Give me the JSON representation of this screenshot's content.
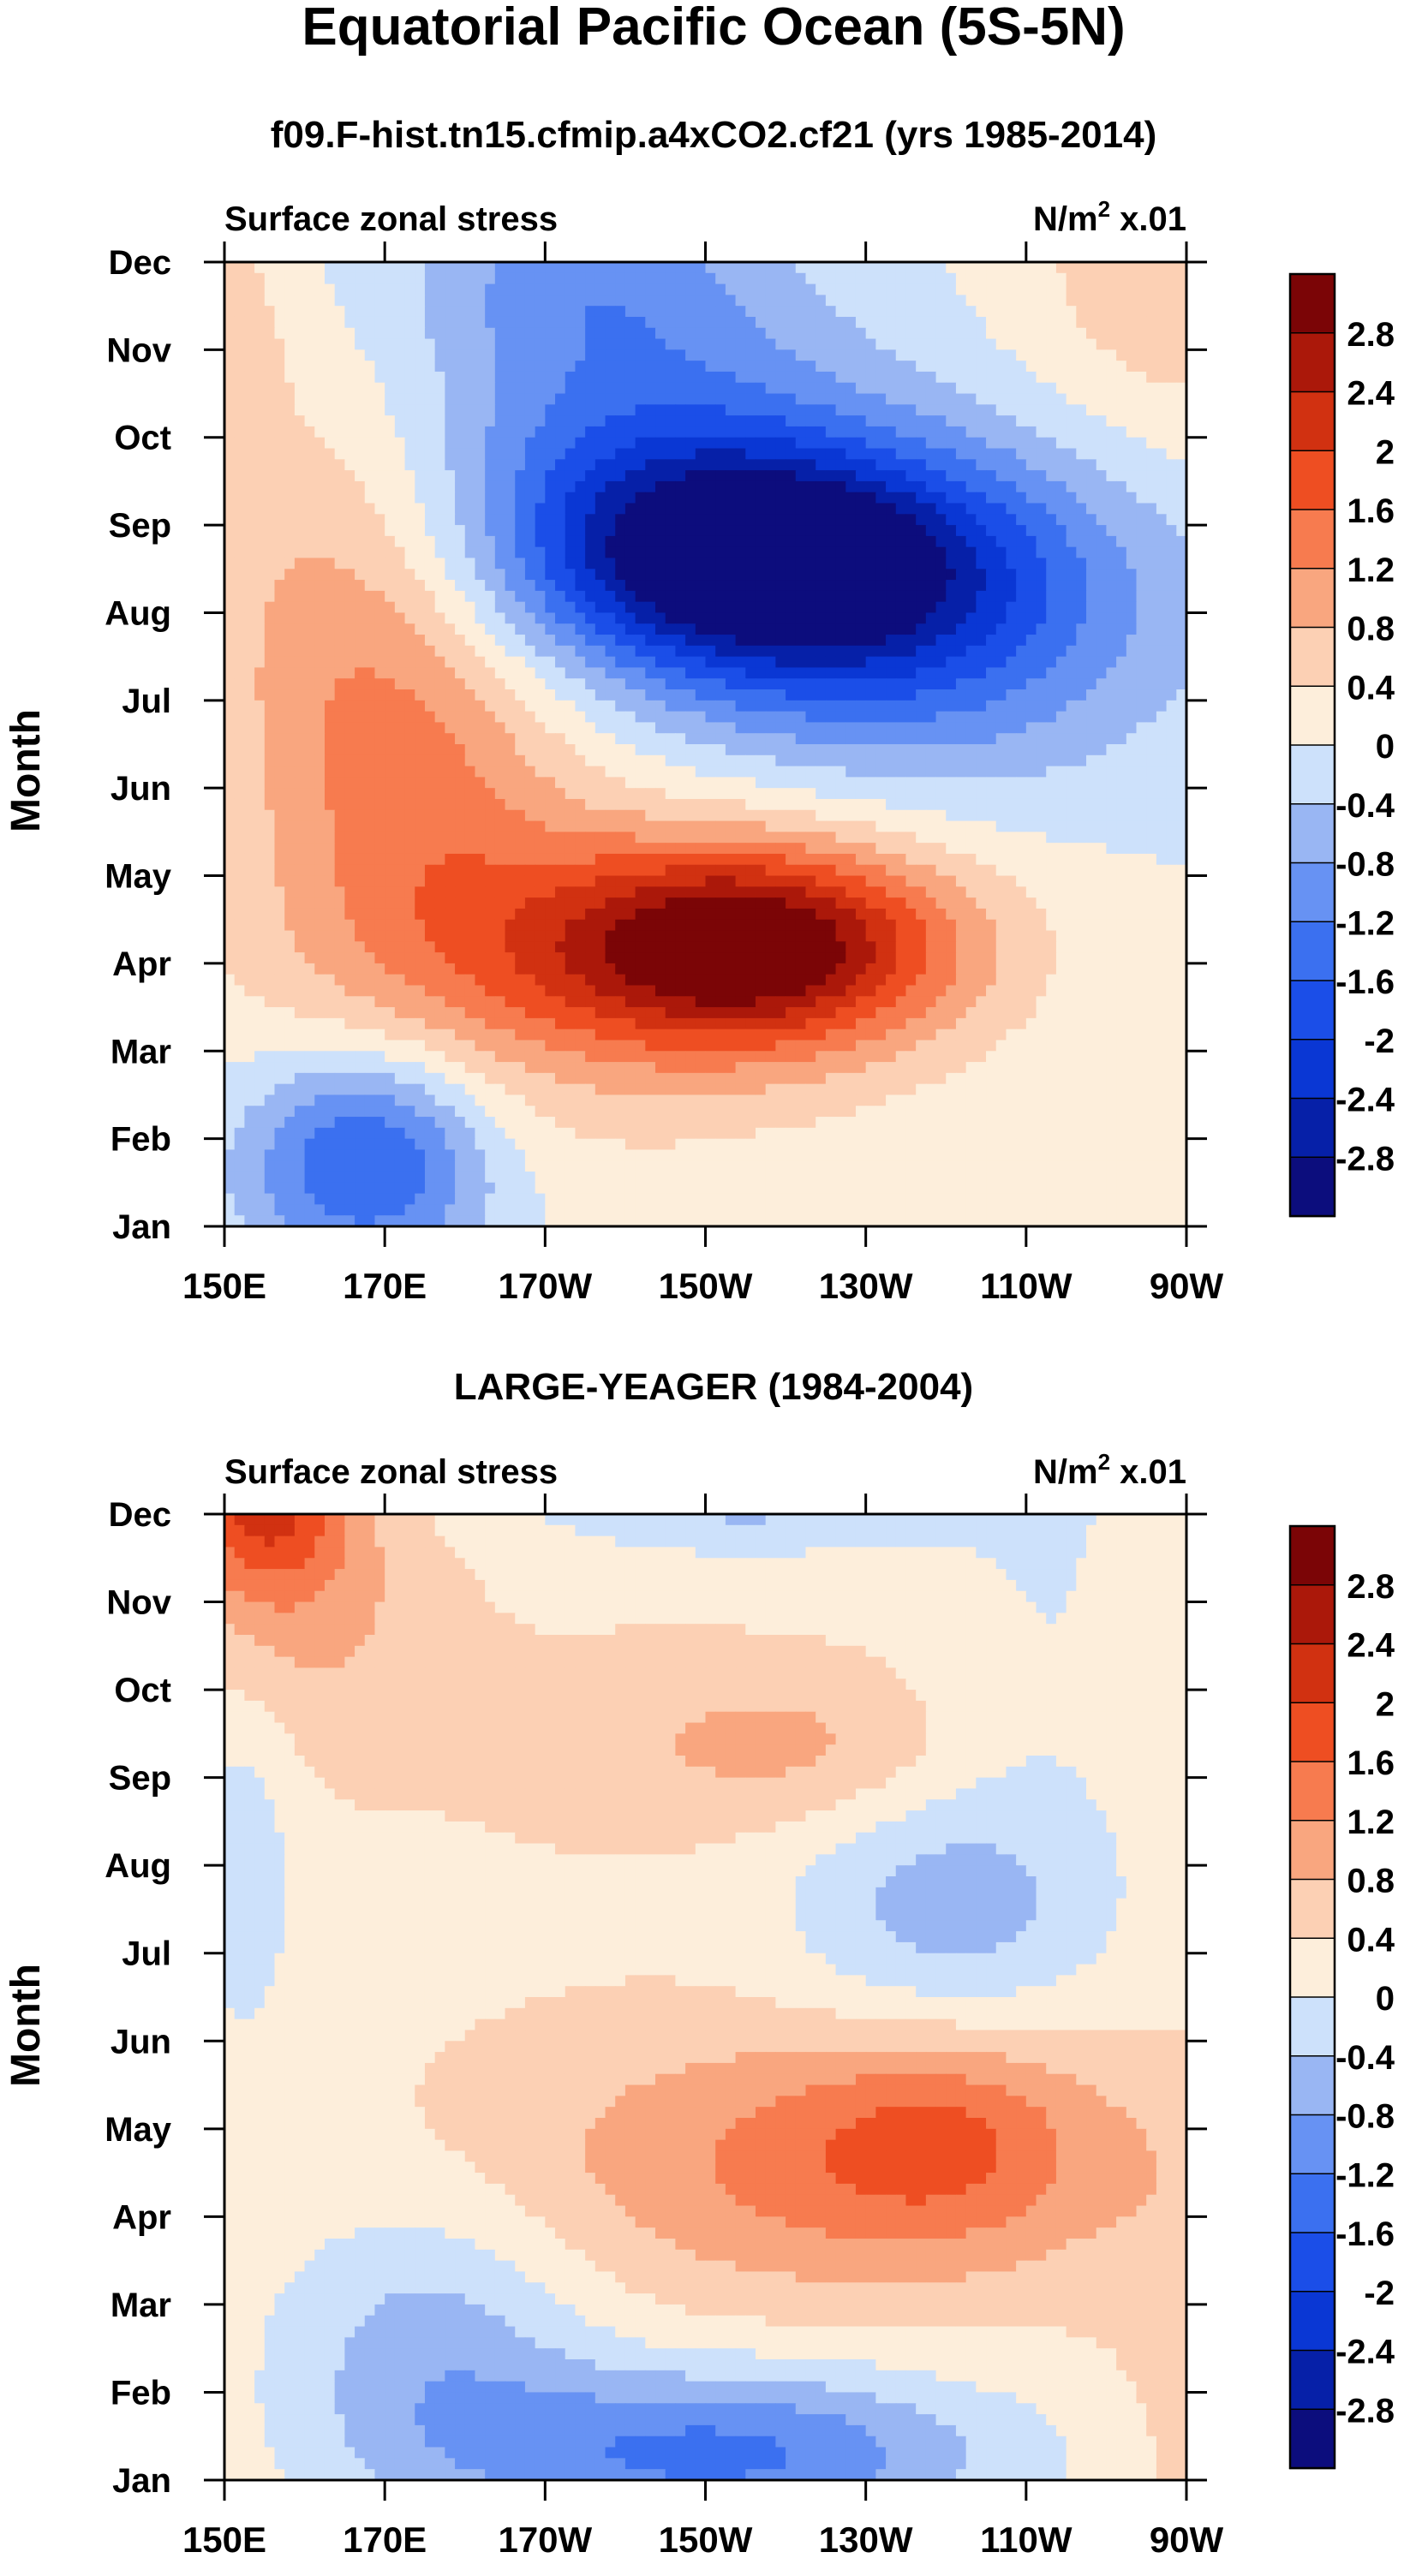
{
  "header": {
    "title": "Equatorial Pacific Ocean (5S-5N)"
  },
  "chart_data": [
    {
      "type": "heatmap",
      "title": "f09.F-hist.tn15.cfmip.a4xCO2.cf21 (yrs 1985-2014)",
      "left_label": "Surface zonal stress",
      "units_main": "N/m",
      "units_sup": "2",
      "units_tail": " x.01",
      "ylabel": "Month",
      "x_ticks": [
        "150E",
        "170E",
        "170W",
        "150W",
        "130W",
        "110W",
        "90W"
      ],
      "y_ticks": [
        "Jan",
        "Feb",
        "Mar",
        "Apr",
        "May",
        "Jun",
        "Jul",
        "Aug",
        "Sep",
        "Oct",
        "Nov",
        "Dec"
      ],
      "x_range_deg_east": [
        150,
        270
      ],
      "colorbar_levels": [
        "2.8",
        "2.4",
        "2",
        "1.6",
        "1.2",
        "0.8",
        "0.4",
        "0",
        "-0.4",
        "-0.8",
        "-1.2",
        "-1.6",
        "-2",
        "-2.4",
        "-2.8"
      ],
      "features": [
        {
          "lon": 215,
          "month": 3.2,
          "value": 3.0,
          "sx": 18,
          "sy": 0.8
        },
        {
          "lon": 195,
          "month": 2.8,
          "value": 0.8,
          "sx": 30,
          "sy": 1.5
        },
        {
          "lon": 175,
          "month": 5.0,
          "value": 1.0,
          "sx": 14,
          "sy": 2.0
        },
        {
          "lon": 162,
          "month": 7.3,
          "value": 0.7,
          "sx": 13,
          "sy": 2.0
        },
        {
          "lon": 215,
          "month": 7.6,
          "value": -3.0,
          "sx": 20,
          "sy": 0.9
        },
        {
          "lon": 235,
          "month": 7.0,
          "value": -1.6,
          "sx": 22,
          "sy": 1.3
        },
        {
          "lon": 200,
          "month": 9.2,
          "value": -1.1,
          "sx": 20,
          "sy": 1.2
        },
        {
          "lon": 168,
          "month": 0.8,
          "value": -1.9,
          "sx": 11,
          "sy": 0.9
        },
        {
          "lon": 195,
          "month": 10.9,
          "value": -0.7,
          "sx": 16,
          "sy": 0.7
        },
        {
          "lon": 270,
          "month": 11.0,
          "value": 0.8,
          "sx": 14,
          "sy": 1.4
        },
        {
          "lon": 152,
          "month": 10.0,
          "value": 0.5,
          "sx": 4,
          "sy": 1.2
        }
      ]
    },
    {
      "type": "heatmap",
      "title": "LARGE-YEAGER (1984-2004)",
      "left_label": "Surface zonal stress",
      "units_main": "N/m",
      "units_sup": "2",
      "units_tail": " x.01",
      "ylabel": "Month",
      "x_ticks": [
        "150E",
        "170E",
        "170W",
        "150W",
        "130W",
        "110W",
        "90W"
      ],
      "y_ticks": [
        "Jan",
        "Feb",
        "Mar",
        "Apr",
        "May",
        "Jun",
        "Jul",
        "Aug",
        "Sep",
        "Oct",
        "Nov",
        "Dec"
      ],
      "x_range_deg_east": [
        150,
        270
      ],
      "colorbar_levels": [
        "2.8",
        "2.4",
        "2",
        "1.6",
        "1.2",
        "0.8",
        "0.4",
        "0",
        "-0.4",
        "-0.8",
        "-1.2",
        "-1.6",
        "-2",
        "-2.4",
        "-2.8"
      ],
      "features": [
        {
          "lon": 0,
          "month": 0,
          "value": 0.3,
          "sx": 0,
          "sy": 0
        },
        {
          "lon": 155,
          "month": 11.3,
          "value": 1.7,
          "sx": 7,
          "sy": 0.8
        },
        {
          "lon": 160,
          "month": 10.0,
          "value": 0.6,
          "sx": 12,
          "sy": 1.2
        },
        {
          "lon": 225,
          "month": 3.6,
          "value": 1.0,
          "sx": 28,
          "sy": 1.1
        },
        {
          "lon": 240,
          "month": 3.9,
          "value": 0.7,
          "sx": 12,
          "sy": 0.8
        },
        {
          "lon": 205,
          "month": 8.4,
          "value": 0.4,
          "sx": 18,
          "sy": 0.8
        },
        {
          "lon": 225,
          "month": 8.3,
          "value": 0.4,
          "sx": 12,
          "sy": 0.6
        },
        {
          "lon": 212,
          "month": 0.3,
          "value": -1.6,
          "sx": 24,
          "sy": 0.7
        },
        {
          "lon": 176,
          "month": 1.5,
          "value": -0.9,
          "sx": 14,
          "sy": 1.2
        },
        {
          "lon": 240,
          "month": 6.5,
          "value": -0.9,
          "sx": 14,
          "sy": 1.0
        },
        {
          "lon": 215,
          "month": 11.5,
          "value": -1.1,
          "sx": 20,
          "sy": 0.6
        },
        {
          "lon": 152,
          "month": 7.0,
          "value": -0.6,
          "sx": 5,
          "sy": 1.5
        },
        {
          "lon": 253,
          "month": 10.0,
          "value": -0.3,
          "sx": 10,
          "sy": 2.0
        },
        {
          "lon": 270,
          "month": 1.0,
          "value": 0.3,
          "sx": 6,
          "sy": 2.0
        }
      ]
    }
  ],
  "colors": {
    "palette": [
      "#0c0d7d",
      "#0620a8",
      "#0a37d4",
      "#1b4ee8",
      "#3b70f0",
      "#6792f3",
      "#99b6f3",
      "#cde1fb",
      "#fdeedb",
      "#fcd0b4",
      "#f9a67f",
      "#f77b4f",
      "#ee4e22",
      "#d13111",
      "#ab180a",
      "#7b0506"
    ]
  }
}
